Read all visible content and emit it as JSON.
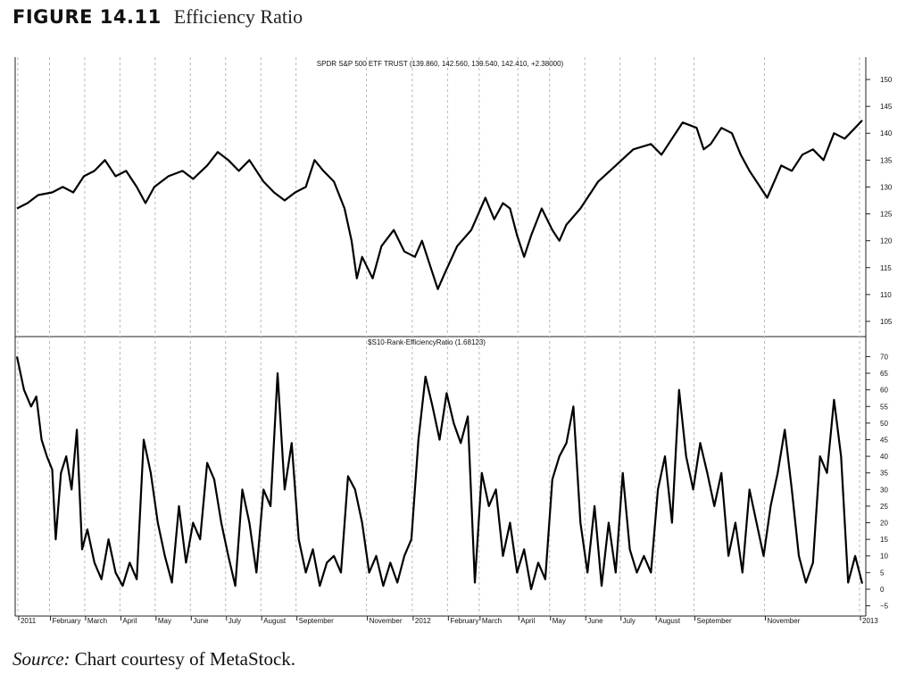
{
  "figure": {
    "label": "FIGURE 14.11",
    "title": "Efficiency Ratio"
  },
  "source": {
    "label": "Source:",
    "text": "Chart courtesy of MetaStock."
  },
  "chart_data": [
    {
      "type": "line",
      "title": "SPDR S&P 500 ETF TRUST (139.860, 142.560, 139.540, 142.410, +2.38000)",
      "y_ticks": [
        105,
        110,
        115,
        120,
        125,
        130,
        135,
        140,
        145,
        150
      ],
      "ylim": [
        103,
        152
      ],
      "x_range": [
        0,
        24
      ],
      "grid": "vertical dashed at month boundaries",
      "series": [
        {
          "values": [
            [
              0.0,
              126
            ],
            [
              0.3,
              127
            ],
            [
              0.6,
              128.5
            ],
            [
              1.0,
              129
            ],
            [
              1.3,
              130
            ],
            [
              1.6,
              129
            ],
            [
              1.9,
              132
            ],
            [
              2.2,
              133
            ],
            [
              2.5,
              135
            ],
            [
              2.8,
              132
            ],
            [
              3.1,
              133
            ],
            [
              3.4,
              130
            ],
            [
              3.65,
              127
            ],
            [
              3.9,
              130
            ],
            [
              4.3,
              132
            ],
            [
              4.7,
              133
            ],
            [
              5.0,
              131.5
            ],
            [
              5.4,
              134
            ],
            [
              5.7,
              136.5
            ],
            [
              6.0,
              135
            ],
            [
              6.3,
              133
            ],
            [
              6.6,
              135
            ],
            [
              7.0,
              131
            ],
            [
              7.3,
              129
            ],
            [
              7.6,
              127.5
            ],
            [
              7.9,
              129
            ],
            [
              8.2,
              130
            ],
            [
              8.45,
              135
            ],
            [
              8.7,
              133
            ],
            [
              9.0,
              131
            ],
            [
              9.3,
              126
            ],
            [
              9.5,
              120
            ],
            [
              9.65,
              113
            ],
            [
              9.8,
              117
            ],
            [
              10.1,
              113
            ],
            [
              10.35,
              119
            ],
            [
              10.7,
              122
            ],
            [
              11.0,
              118
            ],
            [
              11.3,
              117
            ],
            [
              11.5,
              120
            ],
            [
              11.75,
              115
            ],
            [
              11.95,
              111
            ],
            [
              12.15,
              114
            ],
            [
              12.5,
              119
            ],
            [
              12.9,
              122
            ],
            [
              13.1,
              125
            ],
            [
              13.3,
              128
            ],
            [
              13.55,
              124
            ],
            [
              13.8,
              127
            ],
            [
              14.0,
              126
            ],
            [
              14.2,
              121
            ],
            [
              14.4,
              117
            ],
            [
              14.6,
              121
            ],
            [
              14.9,
              126
            ],
            [
              15.2,
              122
            ],
            [
              15.4,
              120
            ],
            [
              15.6,
              123
            ],
            [
              16.0,
              126
            ],
            [
              16.5,
              131
            ],
            [
              17.0,
              134
            ],
            [
              17.5,
              137
            ],
            [
              18.0,
              138
            ],
            [
              18.3,
              136
            ],
            [
              18.6,
              139
            ],
            [
              18.9,
              142
            ],
            [
              19.3,
              141
            ],
            [
              19.5,
              137
            ],
            [
              19.7,
              138
            ],
            [
              20.0,
              141
            ],
            [
              20.3,
              140
            ],
            [
              20.55,
              136
            ],
            [
              20.8,
              133
            ],
            [
              21.1,
              130
            ],
            [
              21.3,
              128
            ],
            [
              21.5,
              131
            ],
            [
              21.7,
              134
            ],
            [
              22.0,
              133
            ],
            [
              22.3,
              136
            ],
            [
              22.6,
              137
            ],
            [
              22.9,
              135
            ],
            [
              23.2,
              140
            ],
            [
              23.5,
              139
            ],
            [
              23.8,
              141
            ],
            [
              24.0,
              142.4
            ]
          ]
        }
      ]
    },
    {
      "type": "line",
      "title": "$S10-Rank-EfficiencyRatio (1.68123)",
      "y_ticks": [
        -5,
        0,
        5,
        10,
        15,
        20,
        25,
        30,
        35,
        40,
        45,
        50,
        55,
        60,
        65,
        70
      ],
      "ylim": [
        -7,
        72
      ],
      "x_range": [
        0,
        24
      ],
      "x_ticks": [
        "2011",
        "February",
        "March",
        "April",
        "May",
        "June",
        "July",
        "August",
        "September",
        "November",
        "2012",
        "February",
        "March",
        "April",
        "May",
        "June",
        "July",
        "August",
        "September",
        "November",
        "2013"
      ],
      "x_tick_positions": [
        0.1,
        1.0,
        2.0,
        3.0,
        4.0,
        5.0,
        6.0,
        7.0,
        8.0,
        10.0,
        11.3,
        12.3,
        13.2,
        14.3,
        15.2,
        16.2,
        17.2,
        18.2,
        19.3,
        21.3,
        24.0
      ],
      "grid": "vertical dashed at month boundaries",
      "series": [
        {
          "values": [
            [
              0.0,
              70
            ],
            [
              0.2,
              60
            ],
            [
              0.4,
              55
            ],
            [
              0.55,
              58
            ],
            [
              0.7,
              45
            ],
            [
              0.85,
              40
            ],
            [
              1.0,
              36
            ],
            [
              1.1,
              15
            ],
            [
              1.25,
              35
            ],
            [
              1.4,
              40
            ],
            [
              1.55,
              30
            ],
            [
              1.7,
              48
            ],
            [
              1.85,
              12
            ],
            [
              2.0,
              18
            ],
            [
              2.2,
              8
            ],
            [
              2.4,
              3
            ],
            [
              2.6,
              15
            ],
            [
              2.8,
              5
            ],
            [
              3.0,
              1
            ],
            [
              3.2,
              8
            ],
            [
              3.4,
              3
            ],
            [
              3.6,
              45
            ],
            [
              3.8,
              35
            ],
            [
              4.0,
              20
            ],
            [
              4.2,
              10
            ],
            [
              4.4,
              2
            ],
            [
              4.6,
              25
            ],
            [
              4.8,
              8
            ],
            [
              5.0,
              20
            ],
            [
              5.2,
              15
            ],
            [
              5.4,
              38
            ],
            [
              5.6,
              33
            ],
            [
              5.8,
              20
            ],
            [
              6.0,
              10
            ],
            [
              6.2,
              1
            ],
            [
              6.4,
              30
            ],
            [
              6.6,
              20
            ],
            [
              6.8,
              5
            ],
            [
              7.0,
              30
            ],
            [
              7.2,
              25
            ],
            [
              7.4,
              65
            ],
            [
              7.6,
              30
            ],
            [
              7.8,
              44
            ],
            [
              8.0,
              15
            ],
            [
              8.2,
              5
            ],
            [
              8.4,
              12
            ],
            [
              8.6,
              1
            ],
            [
              8.8,
              8
            ],
            [
              9.0,
              10
            ],
            [
              9.2,
              5
            ],
            [
              9.4,
              34
            ],
            [
              9.6,
              30
            ],
            [
              9.8,
              20
            ],
            [
              10.0,
              5
            ],
            [
              10.2,
              10
            ],
            [
              10.4,
              1
            ],
            [
              10.6,
              8
            ],
            [
              10.8,
              2
            ],
            [
              11.0,
              10
            ],
            [
              11.2,
              15
            ],
            [
              11.4,
              45
            ],
            [
              11.6,
              64
            ],
            [
              11.8,
              55
            ],
            [
              12.0,
              45
            ],
            [
              12.2,
              59
            ],
            [
              12.4,
              50
            ],
            [
              12.6,
              44
            ],
            [
              12.8,
              52
            ],
            [
              13.0,
              2
            ],
            [
              13.2,
              35
            ],
            [
              13.4,
              25
            ],
            [
              13.6,
              30
            ],
            [
              13.8,
              10
            ],
            [
              14.0,
              20
            ],
            [
              14.2,
              5
            ],
            [
              14.4,
              12
            ],
            [
              14.6,
              0
            ],
            [
              14.8,
              8
            ],
            [
              15.0,
              3
            ],
            [
              15.2,
              33
            ],
            [
              15.4,
              40
            ],
            [
              15.6,
              44
            ],
            [
              15.8,
              55
            ],
            [
              16.0,
              20
            ],
            [
              16.2,
              5
            ],
            [
              16.4,
              25
            ],
            [
              16.6,
              1
            ],
            [
              16.8,
              20
            ],
            [
              17.0,
              5
            ],
            [
              17.2,
              35
            ],
            [
              17.4,
              12
            ],
            [
              17.6,
              5
            ],
            [
              17.8,
              10
            ],
            [
              18.0,
              5
            ],
            [
              18.2,
              30
            ],
            [
              18.4,
              40
            ],
            [
              18.6,
              20
            ],
            [
              18.8,
              60
            ],
            [
              19.0,
              40
            ],
            [
              19.2,
              30
            ],
            [
              19.4,
              44
            ],
            [
              19.6,
              35
            ],
            [
              19.8,
              25
            ],
            [
              20.0,
              35
            ],
            [
              20.2,
              10
            ],
            [
              20.4,
              20
            ],
            [
              20.6,
              5
            ],
            [
              20.8,
              30
            ],
            [
              21.0,
              20
            ],
            [
              21.2,
              10
            ],
            [
              21.4,
              25
            ],
            [
              21.6,
              35
            ],
            [
              21.8,
              48
            ],
            [
              22.0,
              30
            ],
            [
              22.2,
              10
            ],
            [
              22.4,
              2
            ],
            [
              22.6,
              8
            ],
            [
              22.8,
              40
            ],
            [
              23.0,
              35
            ],
            [
              23.2,
              57
            ],
            [
              23.4,
              40
            ],
            [
              23.6,
              2
            ],
            [
              23.8,
              10
            ],
            [
              24.0,
              1.7
            ]
          ]
        }
      ]
    }
  ]
}
